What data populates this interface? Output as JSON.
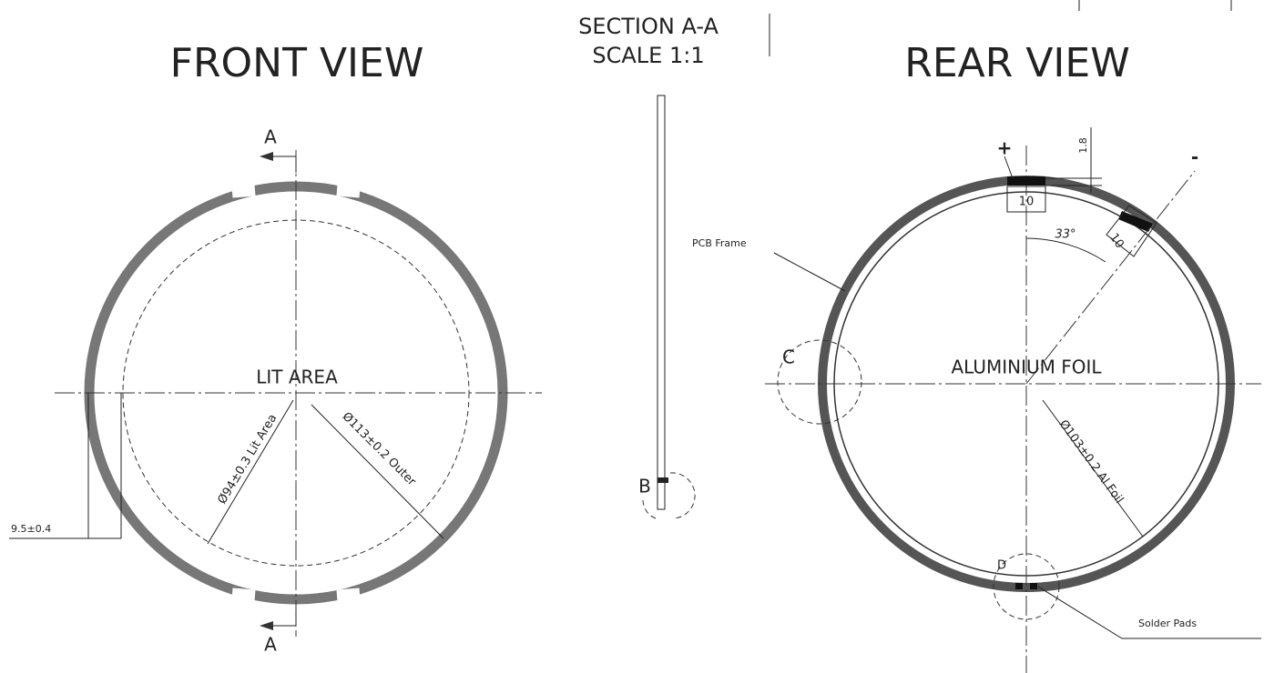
{
  "front_view": {
    "title": "FRONT VIEW",
    "section_top": "A",
    "section_bottom": "A",
    "lit_area": "LIT AREA",
    "lit_dim": "Ø94±0.3 Lit Area",
    "outer_dim": "Ø113±0.2 Outer",
    "offset_dim": "9.5±0.4"
  },
  "section_view": {
    "title": "SECTION A-A",
    "scale": "SCALE 1:1",
    "detail": "B"
  },
  "rear_view": {
    "title": "REAR VIEW",
    "plus": "+",
    "minus": "-",
    "pad_height": "1.8",
    "pad_width_top": "10",
    "pad_width_side": "10",
    "angle": "33°",
    "pcb_frame": "PCB Frame",
    "detail_c": "C",
    "foil": "ALUMINIUM FOIL",
    "foil_dim": "Ø103±0.2 Al Foil",
    "detail_d": "D",
    "solder_pads": "Solder Pads"
  }
}
